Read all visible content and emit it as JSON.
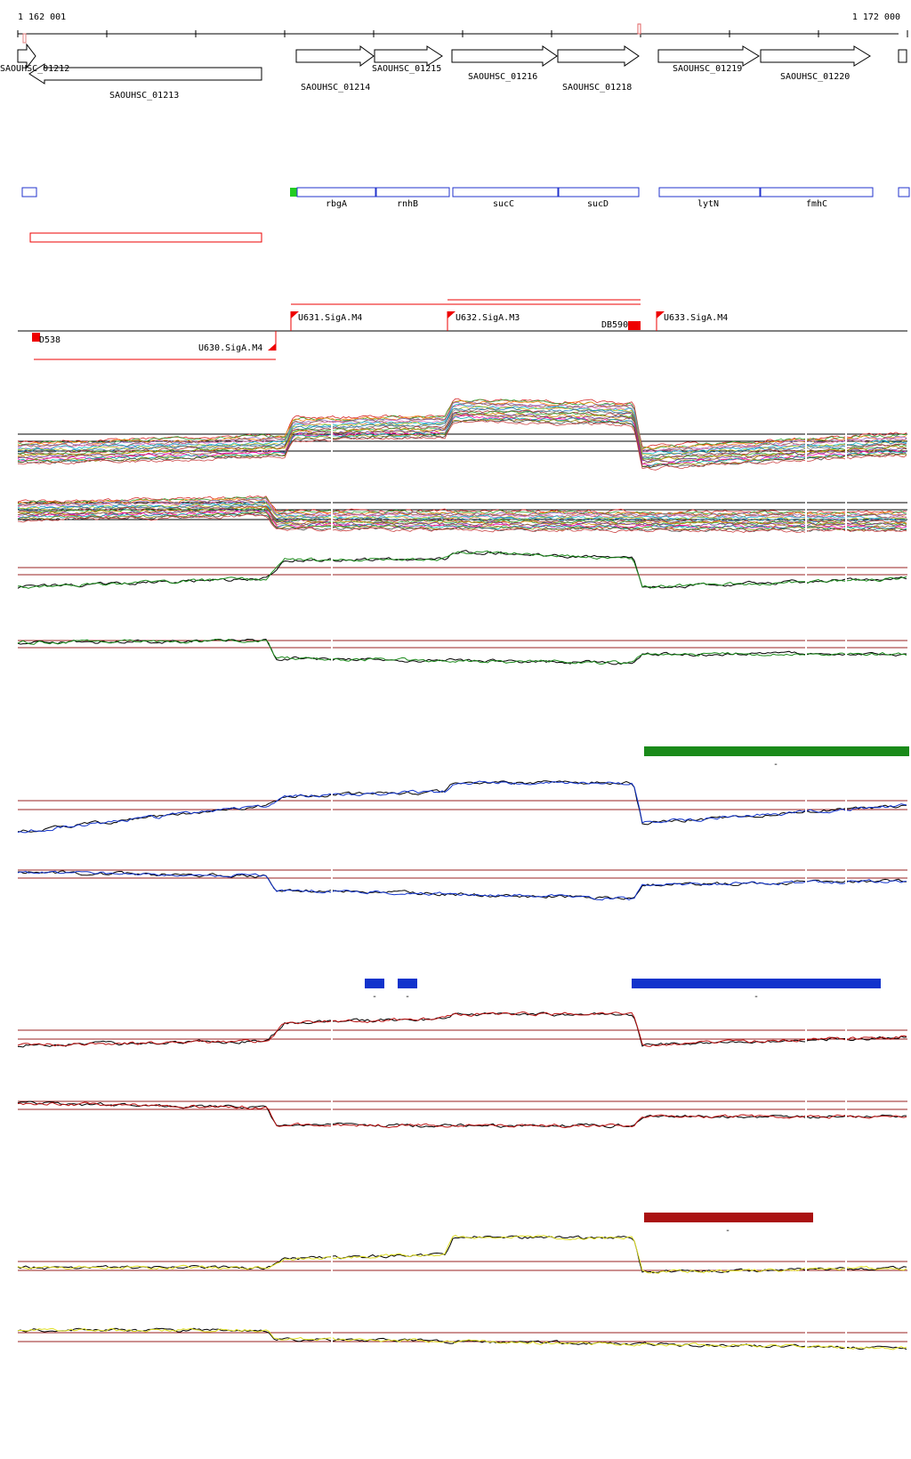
{
  "ruler": {
    "start": "1 162 001",
    "end": "1 172 000"
  },
  "genes": [
    {
      "id": "SAOUHSC_01212",
      "label": "SAOUHSC_01212",
      "strand": "+"
    },
    {
      "id": "SAOUHSC_01213",
      "label": "SAOUHSC_01213",
      "strand": "-"
    },
    {
      "id": "SAOUHSC_01214",
      "label": "SAOUHSC_01214",
      "strand": "+"
    },
    {
      "id": "SAOUHSC_01215",
      "label": "SAOUHSC_01215",
      "strand": "+"
    },
    {
      "id": "SAOUHSC_01216",
      "label": "SAOUHSC_01216",
      "strand": "+"
    },
    {
      "id": "SAOUHSC_01218",
      "label": "SAOUHSC_01218",
      "strand": "+"
    },
    {
      "id": "SAOUHSC_01219",
      "label": "SAOUHSC_01219",
      "strand": "+"
    },
    {
      "id": "SAOUHSC_01220",
      "label": "SAOUHSC_01220",
      "strand": "+"
    }
  ],
  "gene_names": [
    "rbgA",
    "rnhB",
    "sucC",
    "sucD",
    "lytN",
    "fmhC"
  ],
  "promoters": [
    {
      "label": "U631.SigA.M4"
    },
    {
      "label": "U632.SigA.M3"
    },
    {
      "label": "U633.SigA.M4"
    },
    {
      "label": "U630.SigA.M4"
    }
  ],
  "terminators": [
    {
      "label": "D538"
    },
    {
      "label": "DB590"
    }
  ],
  "segment_marks": {
    "green": "-",
    "blue": [
      "-",
      "-",
      "-"
    ],
    "red": "-"
  },
  "colors": {
    "gene_outline": "#000000",
    "gene_name_box": "#2233cc",
    "promoter": "#ee0000",
    "green_track": "#1a8a1a",
    "blue_track": "#1133cc",
    "red_track": "#bb1111",
    "yellow_track": "#dddd22",
    "threshold": "#992222"
  }
}
